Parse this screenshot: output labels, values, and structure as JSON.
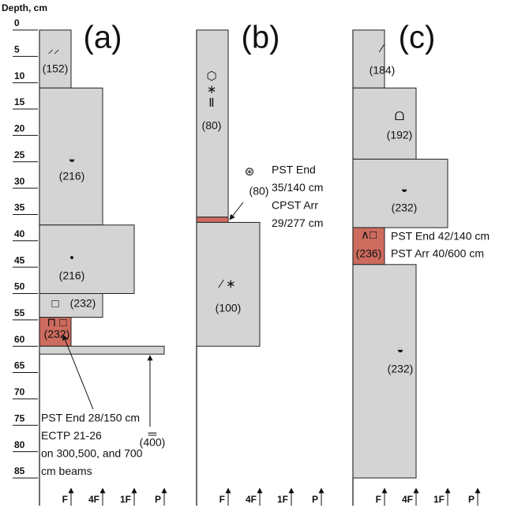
{
  "depth_axis": {
    "title": "Depth, cm",
    "ticks": [
      0,
      5,
      10,
      15,
      20,
      25,
      30,
      35,
      40,
      45,
      50,
      55,
      60,
      65,
      70,
      75,
      80,
      85
    ]
  },
  "hardness_scale": [
    "F",
    "4F",
    "1F",
    "P"
  ],
  "panels": [
    {
      "label": "(a)",
      "layers": [
        {
          "top": 0,
          "bottom": 11,
          "hardness": "F",
          "weak": false,
          "symbols": [
            "⸝⸝"
          ],
          "size": "(152)"
        },
        {
          "top": 11,
          "bottom": 37,
          "hardness": "4F",
          "weak": false,
          "symbols": [
            "◒"
          ],
          "size": "(216)"
        },
        {
          "top": 37,
          "bottom": 50,
          "hardness": "1F",
          "weak": false,
          "symbols": [
            "•"
          ],
          "size": "(216)"
        },
        {
          "top": 50,
          "bottom": 54.5,
          "hardness": "4F",
          "weak": false,
          "symbols": [
            "□"
          ],
          "size": "(232)"
        },
        {
          "top": 54.5,
          "bottom": 60,
          "hardness": "F",
          "weak": true,
          "symbols": [
            "⊓ □"
          ],
          "size": "(232)"
        },
        {
          "top": 60,
          "bottom": 61.5,
          "hardness": "P",
          "weak": false,
          "symbols": [
            "═"
          ],
          "size": "(400)"
        }
      ],
      "annotation": [
        "PST End 28/150 cm",
        "ECTP 21-26",
        "on 300,500, and 700",
        "cm beams"
      ]
    },
    {
      "label": "(b)",
      "layers": [
        {
          "top": 0,
          "bottom": 35.5,
          "hardness": "F",
          "weak": false,
          "symbols": [
            "⬡",
            "∗",
            "Ⅱ"
          ],
          "size": "(80)"
        },
        {
          "top": 35.5,
          "bottom": 36.5,
          "hardness": "F",
          "weak": true,
          "symbols": [
            "⊛"
          ],
          "size": "(80)"
        },
        {
          "top": 36.5,
          "bottom": 60,
          "hardness": "4F",
          "weak": false,
          "symbols": [
            "⁄ ∗"
          ],
          "size": "(100)"
        }
      ],
      "annotation": [
        "PST End",
        "35/140 cm",
        "CPST Arr",
        "29/277 cm"
      ]
    },
    {
      "label": "(c)",
      "layers": [
        {
          "top": 0,
          "bottom": 11,
          "hardness": "F",
          "weak": false,
          "symbols": [
            "⁄"
          ],
          "size": "(184)"
        },
        {
          "top": 11,
          "bottom": 24.5,
          "hardness": "4F",
          "weak": false,
          "symbols": [
            "ᗝ"
          ],
          "size": "(192)"
        },
        {
          "top": 24.5,
          "bottom": 37.5,
          "hardness": "1F",
          "weak": false,
          "symbols": [
            "◒"
          ],
          "size": "(232)"
        },
        {
          "top": 37.5,
          "bottom": 44.5,
          "hardness": "F",
          "weak": true,
          "symbols": [
            "∧□"
          ],
          "size": "(236)"
        },
        {
          "top": 44.5,
          "bottom": 85,
          "hardness": "4F",
          "weak": false,
          "symbols": [
            "◒"
          ],
          "size": "(232)"
        }
      ],
      "annotation": [
        "PST End 42/140 cm",
        "PST Arr 40/600 cm"
      ]
    }
  ]
}
